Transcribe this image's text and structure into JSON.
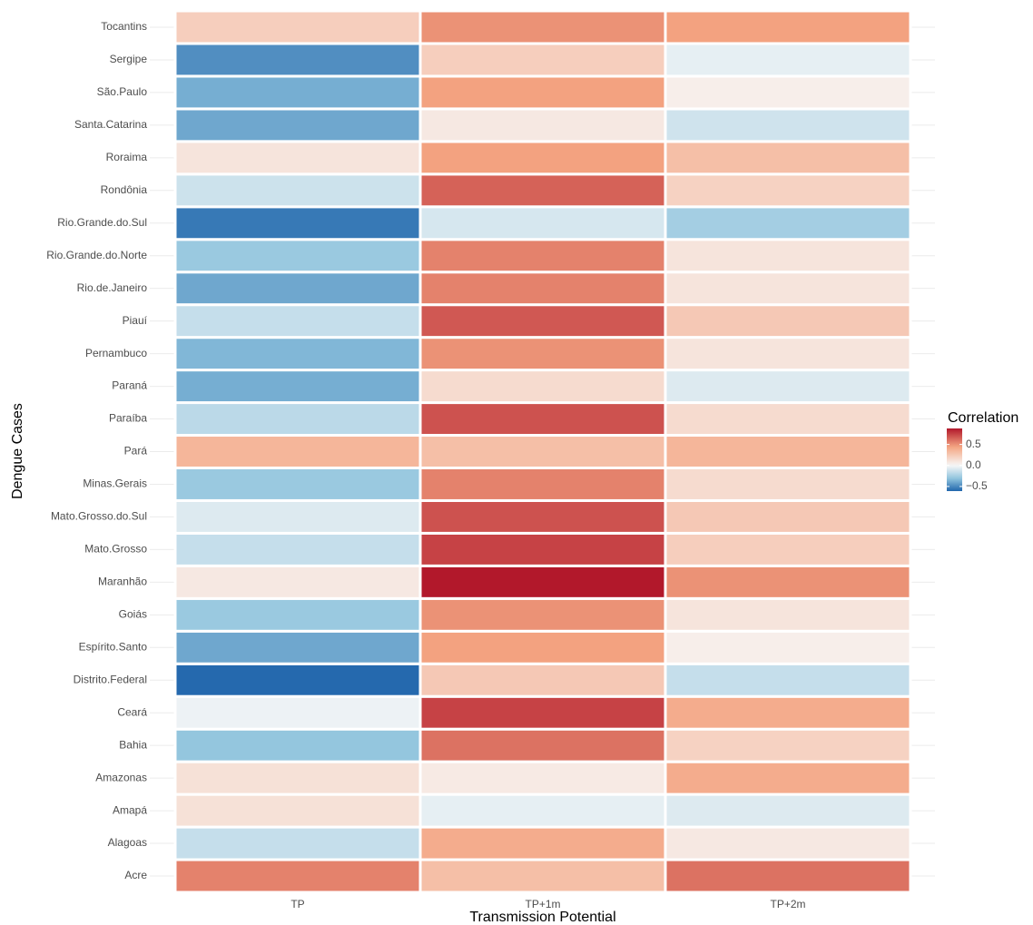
{
  "chart_data": {
    "type": "heatmap",
    "x_label": "Transmission Potential",
    "y_label": "Dengue Cases",
    "x": [
      "TP",
      "TP+1m",
      "TP+2m"
    ],
    "y": [
      "Acre",
      "Alagoas",
      "Amapá",
      "Amazonas",
      "Bahia",
      "Ceará",
      "Distrito.Federal",
      "Espírito.Santo",
      "Goiás",
      "Maranhão",
      "Mato.Grosso",
      "Mato.Grosso.do.Sul",
      "Minas.Gerais",
      "Pará",
      "Paraíba",
      "Paraná",
      "Pernambuco",
      "Piauí",
      "Rio.de.Janeiro",
      "Rio.Grande.do.Norte",
      "Rio.Grande.do.Sul",
      "Rondônia",
      "Roraima",
      "Santa.Catarina",
      "São.Paulo",
      "Sergipe",
      "Tocantins"
    ],
    "z": [
      [
        0.55,
        0.3,
        0.6
      ],
      [
        -0.15,
        0.4,
        0.08
      ],
      [
        0.12,
        -0.05,
        -0.08
      ],
      [
        0.12,
        0.07,
        0.4
      ],
      [
        -0.3,
        0.6,
        0.2
      ],
      [
        -0.03,
        0.75,
        0.4
      ],
      [
        -0.6,
        0.25,
        -0.15
      ],
      [
        -0.4,
        0.45,
        0.05
      ],
      [
        -0.28,
        0.5,
        0.1
      ],
      [
        0.08,
        0.88,
        0.5
      ],
      [
        -0.15,
        0.75,
        0.22
      ],
      [
        -0.08,
        0.7,
        0.25
      ],
      [
        -0.28,
        0.55,
        0.15
      ],
      [
        0.35,
        0.3,
        0.35
      ],
      [
        -0.18,
        0.7,
        0.15
      ],
      [
        -0.38,
        0.15,
        -0.08
      ],
      [
        -0.35,
        0.5,
        0.1
      ],
      [
        -0.15,
        0.68,
        0.25
      ],
      [
        -0.4,
        0.55,
        0.1
      ],
      [
        -0.28,
        0.55,
        0.1
      ],
      [
        -0.55,
        -0.1,
        -0.25
      ],
      [
        -0.13,
        0.65,
        0.2
      ],
      [
        0.1,
        0.45,
        0.3
      ],
      [
        -0.4,
        0.08,
        -0.12
      ],
      [
        -0.38,
        0.45,
        0.05
      ],
      [
        -0.48,
        0.22,
        -0.05
      ],
      [
        0.22,
        0.5,
        0.45
      ]
    ],
    "zlim": [
      -0.61,
      0.88
    ],
    "colors": [
      "#2166ac",
      "#92c5de",
      "#f7f7f7",
      "#f4a582",
      "#b2182b"
    ],
    "legend_title": "Correlation",
    "colorbar_ticks": [
      0.5,
      {
        "value": 0,
        "label": "0.0"
      },
      {
        "value": -0.5,
        "label": "−0.5"
      }
    ],
    "grid": true
  }
}
